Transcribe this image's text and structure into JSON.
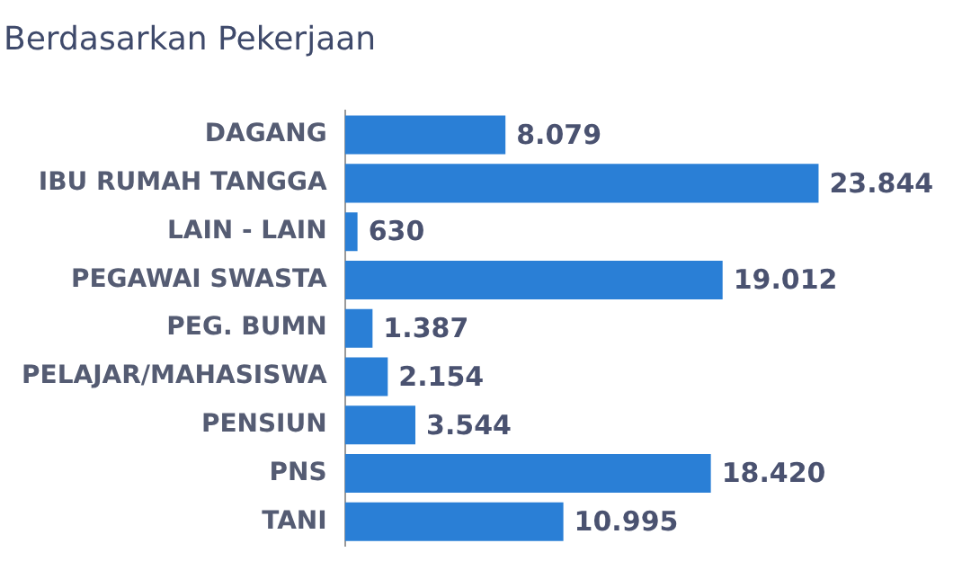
{
  "chart_data": {
    "type": "bar",
    "orientation": "horizontal",
    "title": "Berdasarkan Pekerjaan",
    "categories": [
      "DAGANG",
      "IBU RUMAH TANGGA",
      "LAIN - LAIN",
      "PEGAWAI SWASTA",
      "PEG. BUMN",
      "PELAJAR/MAHASISWA",
      "PENSIUN",
      "PNS",
      "TANI"
    ],
    "values": [
      8079,
      23844,
      630,
      19012,
      1387,
      2154,
      3544,
      18420,
      10995
    ],
    "value_labels": [
      "8.079",
      "23.844",
      "630",
      "19.012",
      "1.387",
      "2.154",
      "3.544",
      "18.420",
      "10.995"
    ],
    "color": "#2a7fd6",
    "tick_labels": "y",
    "legend": false
  }
}
